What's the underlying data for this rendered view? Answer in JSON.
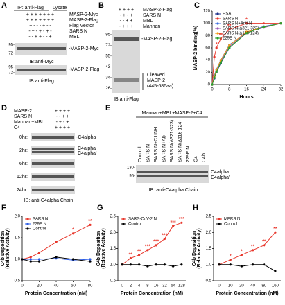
{
  "panels": {
    "A": {
      "label": "A",
      "headers": [
        "IP: anti-Flag",
        "Lysate"
      ],
      "rows": [
        {
          "name": "MASP-2-Myc",
          "signs": "+ + + + + + +"
        },
        {
          "name": "MASP-2-Flag",
          "signs": "+ + + + + + +"
        },
        {
          "name": "Flag Vector",
          "signs": "+ - - - + - -"
        },
        {
          "name": "SARS N",
          "signs": "- + - + - + -"
        },
        {
          "name": "MBL",
          "signs": "- - + + - - +"
        }
      ],
      "blots": [
        {
          "markers": [
            "95-",
            "72-"
          ],
          "band": "-MASP-2-Myc",
          "ib": "IB:anti-Myc"
        },
        {
          "markers": [
            "95-",
            "72-"
          ],
          "band": "-MASP-2-Flag",
          "ib": "IB:anti-Flag"
        }
      ]
    },
    "B": {
      "label": "B",
      "rows": [
        {
          "name": "MASP-2-Flag",
          "signs": "+ + + +"
        },
        {
          "name": "SARS N",
          "signs": "- + - +"
        },
        {
          "name": "MBL",
          "signs": "- - + +"
        },
        {
          "name": "Mannan",
          "signs": "- + + +"
        }
      ],
      "markers": [
        "95-",
        "72-",
        "55-",
        "43-",
        "34-",
        "26-"
      ],
      "band": "-MASP-2-Flag",
      "cleaved": [
        "Cleaved",
        "MASP-2",
        "(445-686aa)"
      ],
      "ib": "IB:anti-Flag"
    },
    "D": {
      "label": "D",
      "rows": [
        {
          "name": "MASP-2",
          "signs": "+ + + +"
        },
        {
          "name": "SARS N",
          "signs": "- - + +"
        },
        {
          "name": "Mannan+MBL",
          "signs": "- + - +"
        },
        {
          "name": "C4",
          "signs": "+ + + +"
        }
      ],
      "times": [
        "0hr:",
        "2hr:",
        "6hr:",
        "12hr:",
        "24hr:"
      ],
      "band_0hr": "-C4alpha",
      "band_2hr": [
        "C4alpha",
        "C4alpha'"
      ],
      "ib": "IB: anti-C4alpha Chain"
    },
    "E": {
      "label": "E",
      "header": "Mannan+MBL+MASP-2+C4",
      "lanes": [
        "Control",
        "SARS N",
        "SARS N+C1INH",
        "SARS N+Ab",
        "SARS N(Δ321-323)",
        "SARS N(Δ116-124)",
        "229E N",
        "C4",
        "C4b"
      ],
      "markers": [
        "130-",
        "95-"
      ],
      "bands": [
        "C4alpha",
        "C4alpha'"
      ],
      "ib": "IB: anti-C4alpha Chain"
    }
  },
  "chart_data": [
    {
      "type": "line",
      "panel": "C",
      "xlabel": "Hours",
      "ylabel": "MASP-2 binding(%)",
      "x": [
        0,
        1,
        2,
        4,
        8,
        16,
        24,
        32
      ],
      "xlim": [
        0,
        32
      ],
      "xticks": [
        0,
        8,
        16,
        24,
        32
      ],
      "ylim": [
        0,
        120
      ],
      "yticks": [
        0,
        20,
        40,
        60,
        80,
        100,
        120
      ],
      "legend": "upper left",
      "series": [
        {
          "name": "HSA",
          "color": "#1c2f8a",
          "values": [
            0,
            10,
            20,
            35,
            60,
            85,
            95,
            100
          ]
        },
        {
          "name": "SARS N",
          "color": "#e8372c",
          "values": [
            0,
            45,
            60,
            75,
            90,
            100,
            100,
            100
          ]
        },
        {
          "name": "SARS N+Anti-N",
          "color": "#3c6fe0",
          "values": [
            0,
            15,
            25,
            40,
            65,
            85,
            95,
            100
          ]
        },
        {
          "name": "SARS N(Δ321-323)",
          "color": "#9b59b6",
          "values": [
            0,
            12,
            22,
            38,
            62,
            85,
            93,
            100
          ]
        },
        {
          "name": "SARS N(Δ116-124)",
          "color": "#f39c12",
          "values": [
            0,
            13,
            24,
            40,
            64,
            86,
            94,
            100
          ]
        },
        {
          "name": "229E N",
          "color": "#2ca02c",
          "values": [
            0,
            11,
            21,
            36,
            60,
            84,
            94,
            100
          ]
        }
      ],
      "annotations": [
        {
          "text": "*",
          "x": 2
        },
        {
          "text": "**",
          "x": 4
        },
        {
          "text": "**",
          "x": 8
        },
        {
          "text": "*",
          "x": 16
        }
      ]
    },
    {
      "type": "line",
      "panel": "F",
      "xlabel": "Protein Concentration (nM)",
      "ylabel": [
        "C4b Deposition",
        "(Relative Activity)"
      ],
      "x": [
        0,
        10,
        20,
        40,
        60,
        80
      ],
      "xlim": [
        0,
        80
      ],
      "xticks": [
        0,
        20,
        40,
        60,
        80
      ],
      "ylim": [
        0.5,
        2.0
      ],
      "yticks": [
        0.5,
        {
          "value": 1,
          "label": "1.0"
        },
        1.5,
        {
          "value": 2,
          "label": "2.0"
        }
      ],
      "legend": "upper left",
      "series": [
        {
          "name": "SARS N",
          "color": "#e8372c",
          "values": [
            1.0,
            1.05,
            1.15,
            1.4,
            1.6,
            1.8
          ]
        },
        {
          "name": "229E N",
          "color": "#2b5ce6",
          "values": [
            1.0,
            1.0,
            1.0,
            1.02,
            0.98,
            1.0
          ]
        },
        {
          "name": "Control",
          "color": "#000000",
          "values": [
            1.0,
            0.95,
            0.95,
            1.05,
            1.0,
            0.95
          ]
        }
      ],
      "annotations": [
        {
          "text": "*",
          "x": 60
        },
        {
          "text": "**",
          "x": 80
        }
      ]
    },
    {
      "type": "line",
      "panel": "G",
      "xlabel": "Protein Concentration (nM)",
      "ylabel": [
        "C4b Deposition",
        "(Relative Activity)"
      ],
      "categories": [
        "0",
        "2",
        "4",
        "8",
        "16",
        "32",
        "64",
        "128"
      ],
      "ylim": [
        0.5,
        2.5
      ],
      "yticks": [
        0.5,
        {
          "value": 1,
          "label": "1.0"
        },
        1.5,
        {
          "value": 2,
          "label": "2.0"
        },
        2.5
      ],
      "legend": "upper left",
      "series": [
        {
          "name": "SARS-CoV-2 N",
          "color": "#e8372c",
          "values": [
            1.0,
            1.2,
            1.3,
            1.45,
            1.6,
            1.8,
            2.2,
            2.3
          ]
        },
        {
          "name": "Control",
          "color": "#000000",
          "values": [
            1.0,
            1.0,
            1.0,
            0.95,
            1.0,
            1.0,
            0.95,
            1.0
          ]
        }
      ],
      "annotations": [
        {
          "text": "**",
          "x": "2"
        },
        {
          "text": "**",
          "x": "4"
        },
        {
          "text": "***",
          "x": "8"
        },
        {
          "text": "***",
          "x": "16"
        },
        {
          "text": "***",
          "x": "32"
        },
        {
          "text": "***",
          "x": "64"
        },
        {
          "text": "***",
          "x": "128"
        }
      ]
    },
    {
      "type": "line",
      "panel": "H",
      "xlabel": "Protein Concentration (nM)",
      "ylabel": [
        "C4b Deposition",
        "(Relative Activity)"
      ],
      "categories": [
        "0",
        "10",
        "20",
        "40",
        "80",
        "160"
      ],
      "ylim": [
        0.5,
        2.5
      ],
      "yticks": [
        0.5,
        {
          "value": 1,
          "label": "1.0"
        },
        1.5,
        {
          "value": 2,
          "label": "2.0"
        },
        2.5
      ],
      "legend": "upper left",
      "series": [
        {
          "name": "MERS N",
          "color": "#e8372c",
          "values": [
            1.0,
            1.15,
            1.3,
            1.45,
            1.6,
            2.0
          ]
        },
        {
          "name": "Control",
          "color": "#000000",
          "values": [
            1.0,
            1.0,
            0.95,
            1.0,
            1.0,
            0.8
          ]
        }
      ],
      "annotations": [
        {
          "text": "*",
          "x": "10"
        },
        {
          "text": "*",
          "x": "20"
        },
        {
          "text": "**",
          "x": "40"
        },
        {
          "text": "**",
          "x": "80"
        },
        {
          "text": "**",
          "x": "160"
        }
      ]
    }
  ]
}
